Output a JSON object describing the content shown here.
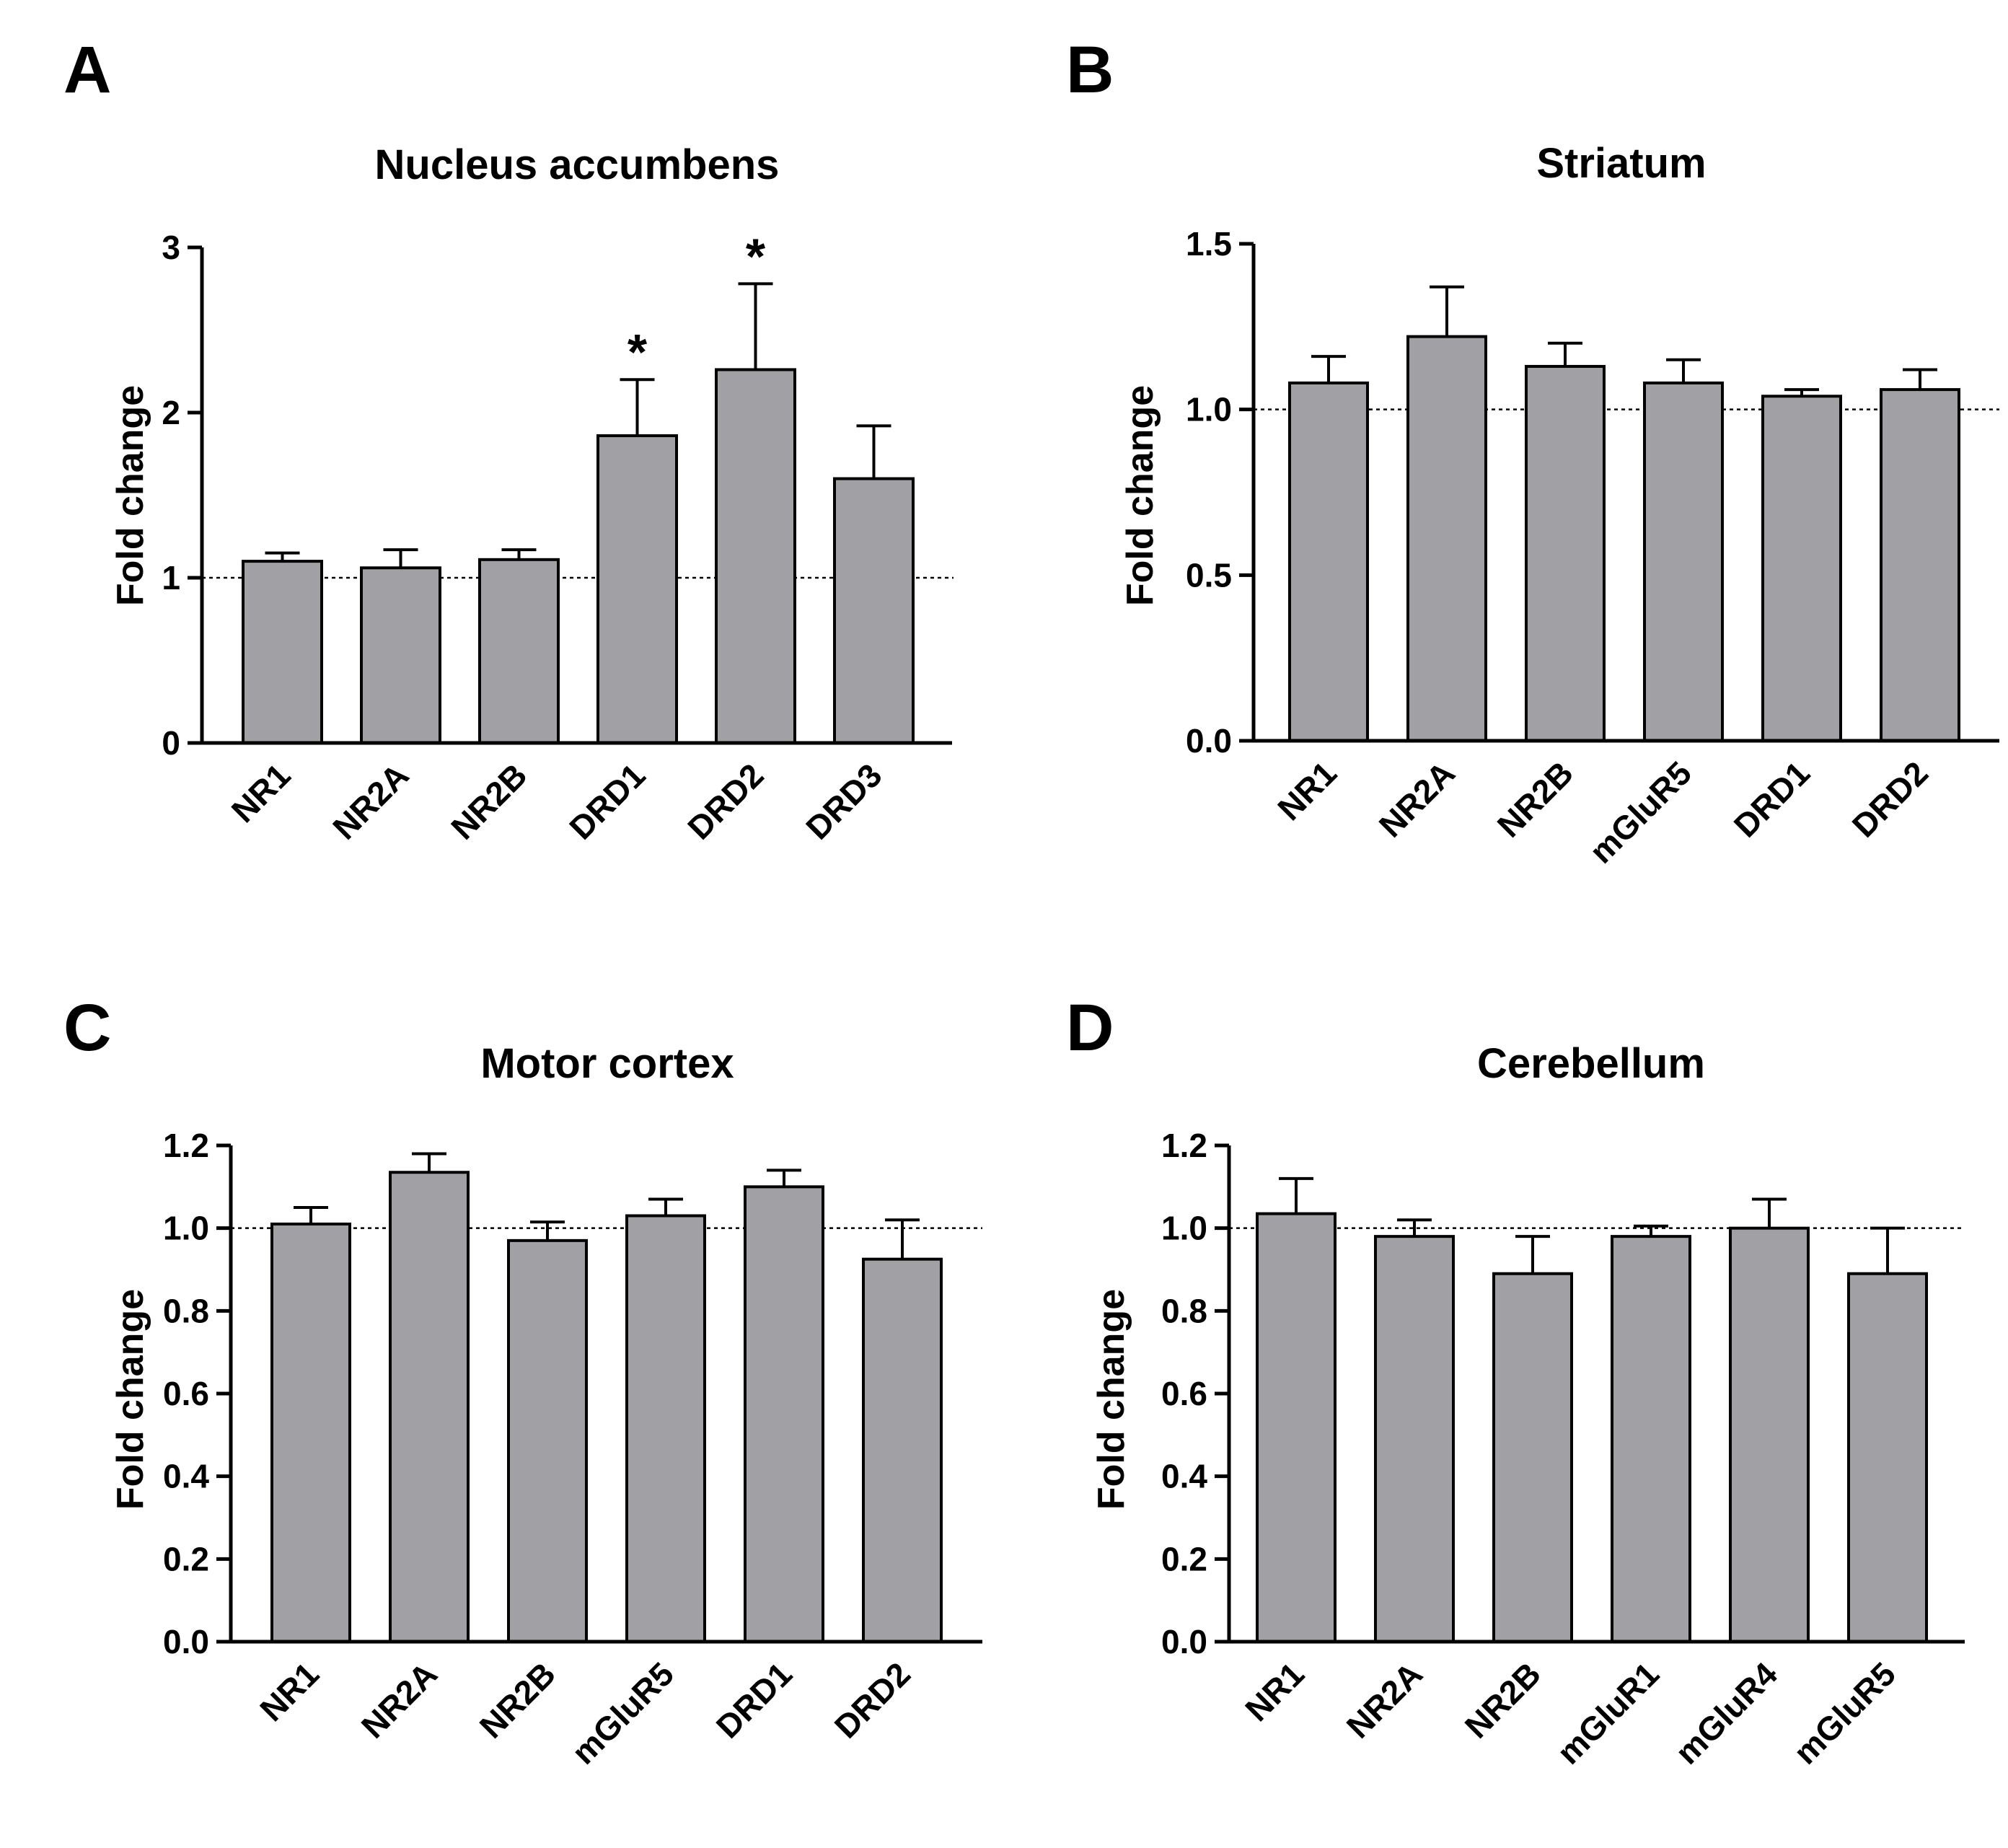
{
  "colors": {
    "bar_fill": "#a1a1a5",
    "axis": "#000000"
  },
  "chart_data": [
    {
      "panel": "A",
      "type": "bar",
      "title": "Nucleus accumbens",
      "ylabel": "Fold change",
      "xlabel": "",
      "ylim": [
        0,
        3
      ],
      "yticks": [
        0,
        1,
        2,
        3
      ],
      "ytick_labels": [
        "0",
        "1",
        "2",
        "3"
      ],
      "reference_line": 1,
      "categories": [
        "NR1",
        "NR2A",
        "NR2B",
        "DRD1",
        "DRD2",
        "DRD3"
      ],
      "values": [
        1.1,
        1.06,
        1.11,
        1.86,
        2.26,
        1.6
      ],
      "errors": [
        0.05,
        0.11,
        0.06,
        0.34,
        0.52,
        0.32
      ],
      "annotations": [
        "",
        "",
        "",
        "*",
        "*",
        ""
      ]
    },
    {
      "panel": "B",
      "type": "bar",
      "title": "Striatum",
      "ylabel": "Fold change",
      "xlabel": "",
      "ylim": [
        0,
        1.5
      ],
      "yticks": [
        0,
        0.5,
        1.0,
        1.5
      ],
      "ytick_labels": [
        "0.0",
        "0.5",
        "1.0",
        "1.5"
      ],
      "reference_line": 1,
      "categories": [
        "NR1",
        "NR2A",
        "NR2B",
        "mGluR5",
        "DRD1",
        "DRD2"
      ],
      "values": [
        1.08,
        1.22,
        1.13,
        1.08,
        1.04,
        1.06
      ],
      "errors": [
        0.08,
        0.15,
        0.07,
        0.07,
        0.02,
        0.06
      ],
      "annotations": [
        "",
        "",
        "",
        "",
        "",
        ""
      ]
    },
    {
      "panel": "C",
      "type": "bar",
      "title": "Motor cortex",
      "ylabel": "Fold change",
      "xlabel": "",
      "ylim": [
        0,
        1.2
      ],
      "yticks": [
        0,
        0.2,
        0.4,
        0.6,
        0.8,
        1.0,
        1.2
      ],
      "ytick_labels": [
        "0.0",
        "0.2",
        "0.4",
        "0.6",
        "0.8",
        "1.0",
        "1.2"
      ],
      "reference_line": 1,
      "categories": [
        "NR1",
        "NR2A",
        "NR2B",
        "mGluR5",
        "DRD1",
        "DRD2"
      ],
      "values": [
        1.01,
        1.135,
        0.97,
        1.03,
        1.1,
        0.925
      ],
      "errors": [
        0.04,
        0.045,
        0.045,
        0.04,
        0.04,
        0.095
      ],
      "annotations": [
        "",
        "",
        "",
        "",
        "",
        ""
      ]
    },
    {
      "panel": "D",
      "type": "bar",
      "title": "Cerebellum",
      "ylabel": "Fold change",
      "xlabel": "",
      "ylim": [
        0,
        1.2
      ],
      "yticks": [
        0,
        0.2,
        0.4,
        0.6,
        0.8,
        1.0,
        1.2
      ],
      "ytick_labels": [
        "0.0",
        "0.2",
        "0.4",
        "0.6",
        "0.8",
        "1.0",
        "1.2"
      ],
      "reference_line": 1,
      "categories": [
        "NR1",
        "NR2A",
        "NR2B",
        "mGluR1",
        "mGluR4",
        "mGluR5"
      ],
      "values": [
        1.035,
        0.98,
        0.89,
        0.98,
        1.0,
        0.89
      ],
      "errors": [
        0.085,
        0.04,
        0.09,
        0.025,
        0.07,
        0.11
      ],
      "annotations": [
        "",
        "",
        "",
        "",
        "",
        ""
      ]
    }
  ]
}
